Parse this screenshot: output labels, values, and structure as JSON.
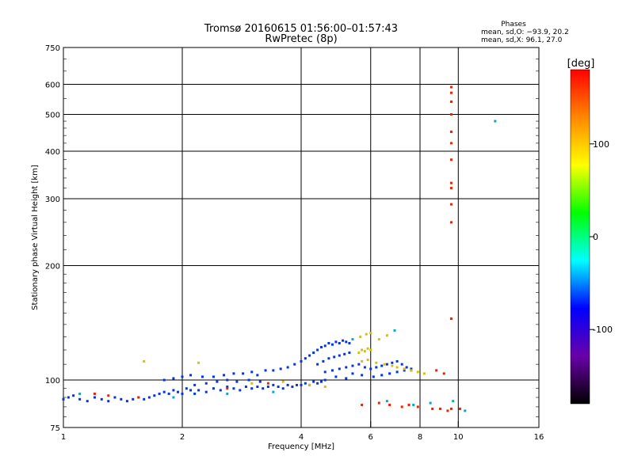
{
  "chart_data": {
    "type": "scatter",
    "title": "Tromsø 20160615 01:56:00–01:57:43",
    "subtitle": "RwPretec (8p)",
    "xlabel": "Frequency [MHz]",
    "ylabel": "Stationary phase Virtual Height [km]",
    "x_scale": "log2",
    "y_scale": "log",
    "xlim": [
      1,
      16
    ],
    "ylim": [
      75,
      750
    ],
    "x_ticks": [
      1,
      2,
      4,
      6,
      8,
      10,
      16
    ],
    "y_ticks": [
      75,
      100,
      200,
      300,
      400,
      500,
      600,
      750
    ],
    "grid": true,
    "stats": {
      "title": "Phases",
      "line1": "mean, sd,O: −93.9, 20.2",
      "line2": "mean, sd,X:  96.1, 27.0"
    },
    "colorbar": {
      "label": "[deg]",
      "range": [
        -180,
        180
      ],
      "ticks": [
        -100,
        0,
        100
      ],
      "colors": [
        "#000000",
        "#6a00a8",
        "#0000ff",
        "#00ffff",
        "#00ff00",
        "#ffff00",
        "#ff8800",
        "#ff0000"
      ]
    },
    "series": [
      {
        "note": "O-mode E/F trace (blue)",
        "color": "#0033ee",
        "points": [
          [
            1.0,
            89
          ],
          [
            1.03,
            90
          ],
          [
            1.06,
            91
          ],
          [
            1.1,
            89
          ],
          [
            1.15,
            88
          ],
          [
            1.2,
            90
          ],
          [
            1.25,
            89
          ],
          [
            1.3,
            88
          ],
          [
            1.35,
            90
          ],
          [
            1.4,
            89
          ],
          [
            1.45,
            88
          ],
          [
            1.5,
            89
          ],
          [
            1.55,
            90
          ],
          [
            1.6,
            89
          ],
          [
            1.65,
            90
          ],
          [
            1.7,
            91
          ],
          [
            1.75,
            92
          ],
          [
            1.8,
            93
          ],
          [
            1.85,
            92
          ],
          [
            1.9,
            94
          ],
          [
            1.95,
            93
          ],
          [
            2.0,
            92
          ],
          [
            2.05,
            95
          ],
          [
            2.1,
            94
          ],
          [
            2.15,
            92
          ],
          [
            2.2,
            94
          ],
          [
            2.3,
            93
          ],
          [
            2.4,
            95
          ],
          [
            2.5,
            94
          ],
          [
            2.6,
            96
          ],
          [
            2.7,
            95
          ],
          [
            2.8,
            94
          ],
          [
            2.9,
            96
          ],
          [
            3.0,
            95
          ],
          [
            3.1,
            96
          ],
          [
            3.2,
            95
          ],
          [
            3.3,
            96
          ],
          [
            3.4,
            97
          ],
          [
            3.5,
            96
          ],
          [
            3.6,
            95
          ],
          [
            3.7,
            97
          ],
          [
            3.8,
            96
          ],
          [
            3.9,
            97
          ],
          [
            4.0,
            97
          ],
          [
            4.1,
            98
          ],
          [
            4.2,
            97
          ],
          [
            4.3,
            99
          ],
          [
            4.4,
            98
          ],
          [
            4.5,
            99
          ],
          [
            4.6,
            100
          ],
          [
            2.1,
            103
          ],
          [
            2.25,
            102
          ],
          [
            2.4,
            102
          ],
          [
            2.55,
            103
          ],
          [
            2.7,
            104
          ],
          [
            2.85,
            104
          ],
          [
            3.0,
            105
          ],
          [
            3.1,
            103
          ],
          [
            3.25,
            106
          ],
          [
            3.4,
            106
          ],
          [
            3.55,
            107
          ],
          [
            3.7,
            108
          ],
          [
            3.85,
            110
          ],
          [
            4.0,
            112
          ],
          [
            4.1,
            114
          ],
          [
            4.2,
            116
          ],
          [
            4.3,
            118
          ],
          [
            4.4,
            120
          ],
          [
            4.5,
            122
          ],
          [
            4.6,
            123
          ],
          [
            4.7,
            125
          ],
          [
            4.8,
            124
          ],
          [
            4.9,
            126
          ],
          [
            5.0,
            125
          ],
          [
            5.1,
            127
          ],
          [
            5.2,
            126
          ],
          [
            5.3,
            125
          ],
          [
            4.4,
            110
          ],
          [
            4.55,
            112
          ],
          [
            4.7,
            114
          ],
          [
            4.85,
            115
          ],
          [
            5.0,
            116
          ],
          [
            5.15,
            117
          ],
          [
            5.3,
            118
          ],
          [
            4.6,
            105
          ],
          [
            4.8,
            106
          ],
          [
            5.0,
            107
          ],
          [
            5.2,
            108
          ],
          [
            5.4,
            109
          ],
          [
            5.6,
            110
          ],
          [
            5.8,
            108
          ],
          [
            6.0,
            107
          ],
          [
            6.2,
            108
          ],
          [
            6.4,
            109
          ],
          [
            6.6,
            110
          ],
          [
            6.8,
            111
          ],
          [
            7.0,
            112
          ],
          [
            7.2,
            110
          ],
          [
            7.4,
            108
          ],
          [
            7.6,
            106
          ],
          [
            6.1,
            102
          ],
          [
            6.4,
            103
          ],
          [
            6.7,
            104
          ],
          [
            7.0,
            105
          ],
          [
            7.3,
            106
          ],
          [
            7.6,
            107
          ],
          [
            5.4,
            104
          ],
          [
            5.7,
            103
          ],
          [
            4.9,
            102
          ],
          [
            5.2,
            101
          ],
          [
            1.8,
            100
          ],
          [
            1.9,
            101
          ],
          [
            2.0,
            102
          ],
          [
            2.15,
            97
          ],
          [
            2.3,
            98
          ],
          [
            2.45,
            99
          ],
          [
            2.6,
            100
          ],
          [
            2.75,
            99
          ],
          [
            2.95,
            100
          ],
          [
            3.15,
            99
          ]
        ]
      },
      {
        "note": "X-mode / scattered echoes (yellow-green)",
        "color": "#d8c000",
        "points": [
          [
            5.6,
            118
          ],
          [
            5.7,
            120
          ],
          [
            5.8,
            119
          ],
          [
            5.9,
            121
          ],
          [
            6.0,
            120
          ],
          [
            5.65,
            130
          ],
          [
            5.85,
            132
          ],
          [
            6.0,
            133
          ],
          [
            6.3,
            128
          ],
          [
            6.6,
            131
          ],
          [
            5.7,
            112
          ],
          [
            5.9,
            113
          ],
          [
            6.2,
            111
          ],
          [
            6.5,
            110
          ],
          [
            6.8,
            109
          ],
          [
            7.0,
            108
          ],
          [
            7.3,
            107
          ],
          [
            7.6,
            106
          ],
          [
            7.9,
            105
          ],
          [
            8.2,
            104
          ],
          [
            1.6,
            112
          ],
          [
            2.2,
            111
          ],
          [
            3.0,
            98
          ],
          [
            3.6,
            99
          ],
          [
            4.2,
            97
          ],
          [
            4.6,
            96
          ]
        ]
      },
      {
        "note": "Red/orange sparse echoes",
        "color": "#ee2200",
        "points": [
          [
            1.2,
            92
          ],
          [
            1.3,
            91
          ],
          [
            1.55,
            90
          ],
          [
            2.6,
            95
          ],
          [
            3.3,
            98
          ],
          [
            5.7,
            86
          ],
          [
            6.3,
            87
          ],
          [
            6.7,
            86
          ],
          [
            7.2,
            85
          ],
          [
            7.5,
            86
          ],
          [
            7.9,
            85
          ],
          [
            8.6,
            84
          ],
          [
            9.0,
            84
          ],
          [
            9.4,
            83
          ],
          [
            9.6,
            84
          ],
          [
            10.1,
            84
          ],
          [
            9.6,
            590
          ],
          [
            9.6,
            570
          ],
          [
            9.6,
            540
          ],
          [
            9.6,
            500
          ],
          [
            9.6,
            450
          ],
          [
            9.6,
            420
          ],
          [
            9.6,
            380
          ],
          [
            9.6,
            330
          ],
          [
            9.6,
            320
          ],
          [
            9.6,
            290
          ],
          [
            9.6,
            260
          ],
          [
            9.6,
            145
          ],
          [
            9.2,
            104
          ],
          [
            8.8,
            106
          ]
        ]
      },
      {
        "note": "Cyan sparse echoes",
        "color": "#00aacc",
        "points": [
          [
            12.4,
            480
          ],
          [
            9.7,
            88
          ],
          [
            10.4,
            83
          ],
          [
            8.5,
            87
          ],
          [
            7.7,
            86
          ],
          [
            6.6,
            88
          ],
          [
            2.6,
            92
          ],
          [
            3.4,
            93
          ],
          [
            1.9,
            90
          ],
          [
            1.1,
            92
          ],
          [
            6.9,
            135
          ],
          [
            5.4,
            128
          ]
        ]
      }
    ]
  }
}
